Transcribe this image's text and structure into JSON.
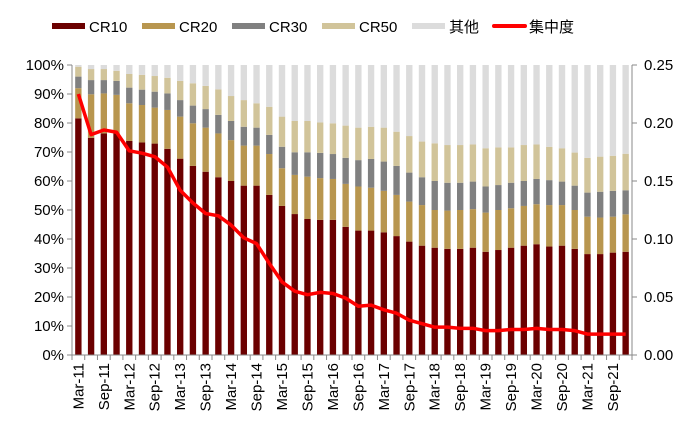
{
  "chart_data": {
    "type": "bar",
    "stacked": true,
    "title": "",
    "xlabel": "",
    "ylabel": "",
    "ylim": [
      0,
      100
    ],
    "y2lim": [
      0,
      0.25
    ],
    "grid": false,
    "legend_position": "top",
    "y_ticks": [
      "0%",
      "10%",
      "20%",
      "30%",
      "40%",
      "50%",
      "60%",
      "70%",
      "80%",
      "90%",
      "100%"
    ],
    "y2_ticks": [
      "0.00",
      "0.05",
      "0.10",
      "0.15",
      "0.20",
      "0.25"
    ],
    "categories": [
      "Mar-11",
      "Jun-11",
      "Sep-11",
      "Dec-11",
      "Mar-12",
      "Jun-12",
      "Sep-12",
      "Dec-12",
      "Mar-13",
      "Jun-13",
      "Sep-13",
      "Dec-13",
      "Mar-14",
      "Jun-14",
      "Sep-14",
      "Dec-14",
      "Mar-15",
      "Jun-15",
      "Sep-15",
      "Dec-15",
      "Mar-16",
      "Jun-16",
      "Sep-16",
      "Dec-16",
      "Mar-17",
      "Jun-17",
      "Sep-17",
      "Dec-17",
      "Mar-18",
      "Jun-18",
      "Sep-18",
      "Dec-18",
      "Mar-19",
      "Jun-19",
      "Sep-19",
      "Dec-19",
      "Mar-20",
      "Jun-20",
      "Sep-20",
      "Dec-20",
      "Mar-21",
      "Jun-21",
      "Sep-21",
      "Dec-21"
    ],
    "x_tick_labels": [
      "Mar-11",
      "Sep-11",
      "Mar-12",
      "Sep-12",
      "Mar-13",
      "Sep-13",
      "Mar-14",
      "Sep-14",
      "Mar-15",
      "Sep-15",
      "Mar-16",
      "Sep-16",
      "Mar-17",
      "Sep-17",
      "Mar-18",
      "Sep-18",
      "Mar-19",
      "Sep-19",
      "Mar-20",
      "Sep-20",
      "Mar-21",
      "Sep-21"
    ],
    "cumulative_units": "percent",
    "series": [
      {
        "name": "CR10",
        "color": "#6b0000",
        "axis": "left",
        "type": "bar",
        "values": [
          81.6,
          74.9,
          76.4,
          76.4,
          73.8,
          73.3,
          72.9,
          71.1,
          67.7,
          65.2,
          63.2,
          61.3,
          60.0,
          58.4,
          58.4,
          55.2,
          51.4,
          48.6,
          46.9,
          46.6,
          46.6,
          44.2,
          42.9,
          42.9,
          42.3,
          41.0,
          39.1,
          37.7,
          37.0,
          36.6,
          36.6,
          37.0,
          35.6,
          36.2,
          37.0,
          37.7,
          38.2,
          37.4,
          37.7,
          36.6,
          34.8,
          34.8,
          35.3,
          35.6
        ]
      },
      {
        "name": "CR20",
        "color": "#b8964f",
        "axis": "left",
        "type": "bar",
        "cumulative": [
          92.0,
          89.9,
          90.2,
          89.7,
          86.8,
          86.2,
          85.3,
          84.5,
          82.2,
          79.9,
          78.4,
          76.4,
          74.1,
          72.2,
          72.2,
          69.3,
          64.4,
          62.1,
          61.5,
          61.0,
          60.7,
          59.0,
          58.1,
          57.7,
          56.6,
          55.2,
          52.9,
          51.7,
          50.0,
          49.8,
          50.0,
          50.3,
          49.1,
          50.0,
          50.6,
          51.4,
          52.0,
          51.7,
          51.7,
          50.0,
          47.7,
          47.4,
          47.7,
          48.5
        ]
      },
      {
        "name": "CR30",
        "color": "#808080",
        "axis": "left",
        "type": "bar",
        "cumulative": [
          96.0,
          94.8,
          94.8,
          94.5,
          92.2,
          91.5,
          90.8,
          90.2,
          87.9,
          86.0,
          84.8,
          82.8,
          80.7,
          78.7,
          78.4,
          75.9,
          71.8,
          69.9,
          69.9,
          69.7,
          69.3,
          68.0,
          67.2,
          67.6,
          66.7,
          65.2,
          62.9,
          61.3,
          60.0,
          59.4,
          59.4,
          59.8,
          58.1,
          58.6,
          59.4,
          60.0,
          60.7,
          60.3,
          59.8,
          58.4,
          56.0,
          56.3,
          56.6,
          56.8
        ]
      },
      {
        "name": "CR50",
        "color": "#d1c49a",
        "axis": "left",
        "type": "bar",
        "cumulative": [
          99.4,
          98.6,
          98.6,
          98.0,
          96.9,
          96.6,
          96.2,
          95.6,
          94.5,
          93.7,
          92.8,
          91.6,
          89.3,
          87.9,
          86.8,
          85.6,
          82.2,
          80.7,
          80.7,
          80.2,
          79.9,
          79.1,
          78.4,
          78.7,
          78.4,
          77.0,
          75.5,
          73.6,
          73.0,
          72.4,
          72.4,
          72.6,
          71.3,
          71.6,
          71.6,
          72.4,
          72.6,
          71.8,
          71.3,
          69.8,
          68.0,
          68.4,
          68.7,
          69.4
        ]
      },
      {
        "name": "其他",
        "color": "#dcdcdc",
        "axis": "left",
        "type": "bar",
        "cumulative": [
          100,
          100,
          100,
          100,
          100,
          100,
          100,
          100,
          100,
          100,
          100,
          100,
          100,
          100,
          100,
          100,
          100,
          100,
          100,
          100,
          100,
          100,
          100,
          100,
          100,
          100,
          100,
          100,
          100,
          100,
          100,
          100,
          100,
          100,
          100,
          100,
          100,
          100,
          100,
          100,
          100,
          100,
          100,
          100
        ]
      },
      {
        "name": "集中度",
        "color": "#ff0000",
        "axis": "right",
        "type": "line",
        "values": [
          0.225,
          0.19,
          0.194,
          0.192,
          0.176,
          0.174,
          0.171,
          0.162,
          0.142,
          0.131,
          0.122,
          0.12,
          0.112,
          0.101,
          0.096,
          0.079,
          0.063,
          0.055,
          0.052,
          0.054,
          0.053,
          0.049,
          0.042,
          0.043,
          0.039,
          0.036,
          0.03,
          0.027,
          0.024,
          0.024,
          0.023,
          0.023,
          0.021,
          0.021,
          0.022,
          0.022,
          0.023,
          0.022,
          0.022,
          0.021,
          0.018,
          0.018,
          0.018,
          0.018
        ]
      }
    ]
  }
}
